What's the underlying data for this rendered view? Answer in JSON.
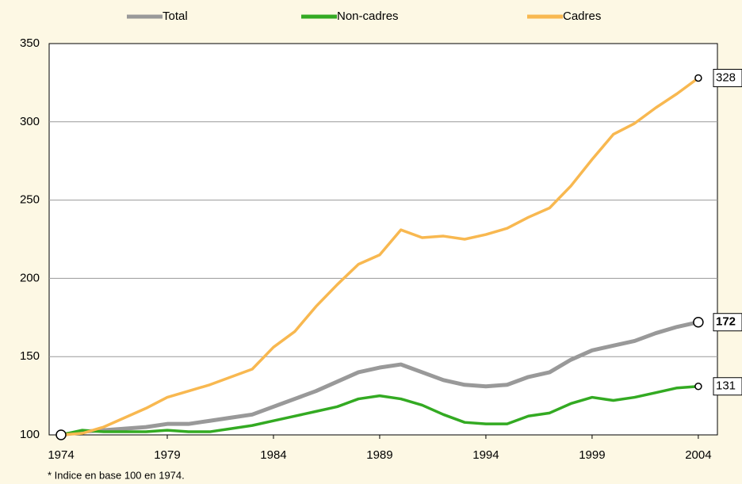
{
  "chart_data": {
    "type": "line",
    "note": "* Indice en base 100 en 1974.",
    "x": [
      1974,
      1975,
      1976,
      1977,
      1978,
      1979,
      1980,
      1981,
      1982,
      1983,
      1984,
      1985,
      1986,
      1987,
      1988,
      1989,
      1990,
      1991,
      1992,
      1993,
      1994,
      1995,
      1996,
      1997,
      1998,
      1999,
      2000,
      2001,
      2002,
      2003,
      2004
    ],
    "series": [
      {
        "name": "Total",
        "color": "#999999",
        "values": [
          100,
          102,
          103,
          104,
          105,
          107,
          107,
          109,
          111,
          113,
          118,
          123,
          128,
          134,
          140,
          143,
          145,
          140,
          135,
          132,
          131,
          132,
          137,
          140,
          148,
          154,
          157,
          160,
          165,
          169,
          172
        ]
      },
      {
        "name": "Non-cadres",
        "color": "#33aa22",
        "values": [
          100,
          103,
          102,
          102,
          102,
          103,
          102,
          102,
          104,
          106,
          109,
          112,
          115,
          118,
          123,
          125,
          123,
          119,
          113,
          108,
          107,
          107,
          112,
          114,
          120,
          124,
          122,
          124,
          127,
          130,
          131
        ]
      },
      {
        "name": "Cadres",
        "color": "#f8b850",
        "values": [
          100,
          101,
          105,
          111,
          117,
          124,
          128,
          132,
          137,
          142,
          156,
          166,
          182,
          196,
          209,
          215,
          231,
          226,
          227,
          225,
          228,
          232,
          239,
          245,
          259,
          276,
          292,
          299,
          309,
          318,
          328
        ]
      }
    ],
    "xlim": [
      1973.44,
      2004.9
    ],
    "xticks": [
      1974,
      1979,
      1984,
      1989,
      1994,
      1999,
      2004
    ],
    "ylim": [
      100,
      350
    ],
    "yticks": [
      100,
      150,
      200,
      250,
      300,
      350
    ],
    "grid": true
  }
}
